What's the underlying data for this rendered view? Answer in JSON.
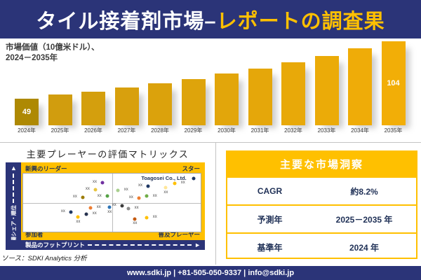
{
  "header": {
    "title_white": "タイル接着剤市場–",
    "title_gold": "レポートの調査果"
  },
  "bar_section": {
    "title_line1": "市場価値（10億米ドル）、",
    "title_line2": "2024－2035年"
  },
  "chart_data": {
    "type": "bar",
    "title": "市場価値（10億米ドル）、2024－2035年",
    "categories": [
      "2024年",
      "2025年",
      "2026年",
      "2027年",
      "2028年",
      "2029年",
      "2030年",
      "2031年",
      "2032年",
      "2033年",
      "2034年",
      "2035年"
    ],
    "values": [
      49,
      53,
      56,
      60,
      64,
      68,
      73,
      78,
      84,
      90,
      97,
      104
    ],
    "labeled_points": [
      {
        "category": "2024年",
        "label": "49"
      },
      {
        "category": "2035年",
        "label": "104"
      }
    ],
    "xlabel": "",
    "ylabel": "市場価値（10億米ドル）",
    "grid": false,
    "legend": false
  },
  "matrix": {
    "title": "主要プレーヤーの評価マトリックス",
    "quadrant_top_left": "新興のリーダー",
    "quadrant_top_right": "スター",
    "quadrant_bottom_left": "参加者",
    "quadrant_bottom_right": "普及プレーヤー",
    "y_axis_label": "市場シェア・順位",
    "x_axis_label": "製品のフットプリント",
    "company_label": "Toagosei Co., Ltd.",
    "point_label": "xx",
    "points": [
      {
        "x": 44.8,
        "y": 16,
        "color": "#7030a0",
        "side": "left"
      },
      {
        "x": 40.8,
        "y": 28,
        "color": "#e8c53f",
        "side": "left"
      },
      {
        "x": 33.7,
        "y": 41,
        "color": "#9c7c07",
        "side": "left"
      },
      {
        "x": 47.5,
        "y": 39,
        "color": "#55a245",
        "side": "left"
      },
      {
        "x": 53.5,
        "y": 29,
        "color": "#a9cf8e",
        "side": "right"
      },
      {
        "x": 70.5,
        "y": 22,
        "color": "#1f3864",
        "side": "left"
      },
      {
        "x": 96.2,
        "y": 8,
        "color": "#1f3864",
        "side": "none"
      },
      {
        "x": 85.5,
        "y": 17,
        "color": "#ffc000",
        "side": "right"
      },
      {
        "x": 80.4,
        "y": 24,
        "color": "#ffe699",
        "side": "below"
      },
      {
        "x": 65.3,
        "y": 42,
        "color": "#ed7d31",
        "side": "left"
      },
      {
        "x": 69.7,
        "y": 39,
        "color": "#70ad47",
        "side": "right"
      },
      {
        "x": 38.1,
        "y": 59,
        "color": "#ed7d31",
        "side": "right"
      },
      {
        "x": 48.7,
        "y": 58,
        "color": "#2e75b6",
        "side": "below"
      },
      {
        "x": 27.0,
        "y": 66,
        "color": "#1f3864",
        "side": "left"
      },
      {
        "x": 35.7,
        "y": 70,
        "color": "#26324f",
        "side": "right"
      },
      {
        "x": 31.0,
        "y": 75,
        "color": "#ffc000",
        "side": "below"
      },
      {
        "x": 55.8,
        "y": 55,
        "color": "#3b3b3b",
        "side": "left"
      },
      {
        "x": 59.4,
        "y": 60,
        "color": "#8c8c8c",
        "side": "right"
      },
      {
        "x": 63.0,
        "y": 78,
        "color": "#c55a11",
        "side": "below"
      },
      {
        "x": 69.7,
        "y": 76,
        "color": "#ffc000",
        "side": "right"
      }
    ]
  },
  "source_note": "ソース：SDKI Analytics 分析",
  "insights": {
    "title": "主要な市場洞察",
    "rows": [
      {
        "label": "CAGR",
        "value": "約8.2%"
      },
      {
        "label": "予測年",
        "value": "2025－2035 年"
      },
      {
        "label": "基準年",
        "value": "2024 年"
      }
    ]
  },
  "footer": {
    "text": "www.sdki.jp | +81-505-050-9337 | info@sdki.jp"
  },
  "colors": {
    "navy": "#2b3478",
    "gold": "#ffc000",
    "bar_first": "#ae8903",
    "bar_gradient_start": "#d19d0e",
    "bar_gradient_end": "#f2ae07",
    "table_text": "#1f3056"
  }
}
